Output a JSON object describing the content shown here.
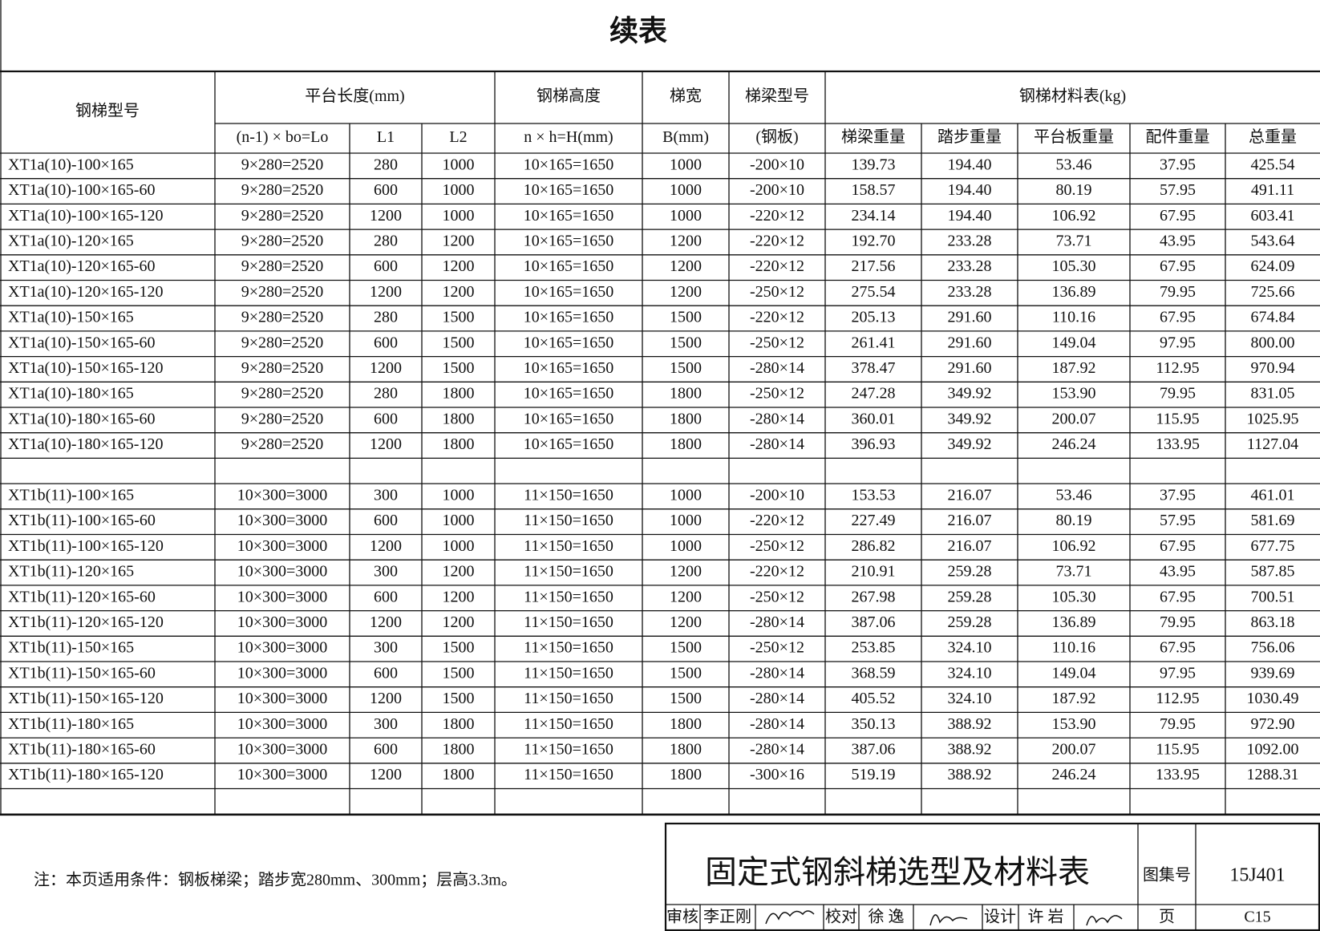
{
  "title": "续表",
  "table": {
    "header_top": {
      "model": "钢梯型号",
      "platform": "平台长度(mm)",
      "height": "钢梯高度",
      "width": "梯宽",
      "beam": "梯梁型号",
      "materials": "钢梯材料表(kg)"
    },
    "header_sub": [
      "(n-1) × bo=Lo",
      "L1",
      "L2",
      "n × h=H(mm)",
      "B(mm)",
      "(钢板)",
      "梯梁重量",
      "踏步重量",
      "平台板重量",
      "配件重量",
      "总重量"
    ],
    "groups": [
      [
        [
          "XT1a(10)-100×165",
          "9×280=2520",
          "280",
          "1000",
          "10×165=1650",
          "1000",
          "-200×10",
          "139.73",
          "194.40",
          "53.46",
          "37.95",
          "425.54"
        ],
        [
          "XT1a(10)-100×165-60",
          "9×280=2520",
          "600",
          "1000",
          "10×165=1650",
          "1000",
          "-200×10",
          "158.57",
          "194.40",
          "80.19",
          "57.95",
          "491.11"
        ],
        [
          "XT1a(10)-100×165-120",
          "9×280=2520",
          "1200",
          "1000",
          "10×165=1650",
          "1000",
          "-220×12",
          "234.14",
          "194.40",
          "106.92",
          "67.95",
          "603.41"
        ],
        [
          "XT1a(10)-120×165",
          "9×280=2520",
          "280",
          "1200",
          "10×165=1650",
          "1200",
          "-220×12",
          "192.70",
          "233.28",
          "73.71",
          "43.95",
          "543.64"
        ],
        [
          "XT1a(10)-120×165-60",
          "9×280=2520",
          "600",
          "1200",
          "10×165=1650",
          "1200",
          "-220×12",
          "217.56",
          "233.28",
          "105.30",
          "67.95",
          "624.09"
        ],
        [
          "XT1a(10)-120×165-120",
          "9×280=2520",
          "1200",
          "1200",
          "10×165=1650",
          "1200",
          "-250×12",
          "275.54",
          "233.28",
          "136.89",
          "79.95",
          "725.66"
        ],
        [
          "XT1a(10)-150×165",
          "9×280=2520",
          "280",
          "1500",
          "10×165=1650",
          "1500",
          "-220×12",
          "205.13",
          "291.60",
          "110.16",
          "67.95",
          "674.84"
        ],
        [
          "XT1a(10)-150×165-60",
          "9×280=2520",
          "600",
          "1500",
          "10×165=1650",
          "1500",
          "-250×12",
          "261.41",
          "291.60",
          "149.04",
          "97.95",
          "800.00"
        ],
        [
          "XT1a(10)-150×165-120",
          "9×280=2520",
          "1200",
          "1500",
          "10×165=1650",
          "1500",
          "-280×14",
          "378.47",
          "291.60",
          "187.92",
          "112.95",
          "970.94"
        ],
        [
          "XT1a(10)-180×165",
          "9×280=2520",
          "280",
          "1800",
          "10×165=1650",
          "1800",
          "-250×12",
          "247.28",
          "349.92",
          "153.90",
          "79.95",
          "831.05"
        ],
        [
          "XT1a(10)-180×165-60",
          "9×280=2520",
          "600",
          "1800",
          "10×165=1650",
          "1800",
          "-280×14",
          "360.01",
          "349.92",
          "200.07",
          "115.95",
          "1025.95"
        ],
        [
          "XT1a(10)-180×165-120",
          "9×280=2520",
          "1200",
          "1800",
          "10×165=1650",
          "1800",
          "-280×14",
          "396.93",
          "349.92",
          "246.24",
          "133.95",
          "1127.04"
        ]
      ],
      [
        [
          "XT1b(11)-100×165",
          "10×300=3000",
          "300",
          "1000",
          "11×150=1650",
          "1000",
          "-200×10",
          "153.53",
          "216.07",
          "53.46",
          "37.95",
          "461.01"
        ],
        [
          "XT1b(11)-100×165-60",
          "10×300=3000",
          "600",
          "1000",
          "11×150=1650",
          "1000",
          "-220×12",
          "227.49",
          "216.07",
          "80.19",
          "57.95",
          "581.69"
        ],
        [
          "XT1b(11)-100×165-120",
          "10×300=3000",
          "1200",
          "1000",
          "11×150=1650",
          "1000",
          "-250×12",
          "286.82",
          "216.07",
          "106.92",
          "67.95",
          "677.75"
        ],
        [
          "XT1b(11)-120×165",
          "10×300=3000",
          "300",
          "1200",
          "11×150=1650",
          "1200",
          "-220×12",
          "210.91",
          "259.28",
          "73.71",
          "43.95",
          "587.85"
        ],
        [
          "XT1b(11)-120×165-60",
          "10×300=3000",
          "600",
          "1200",
          "11×150=1650",
          "1200",
          "-250×12",
          "267.98",
          "259.28",
          "105.30",
          "67.95",
          "700.51"
        ],
        [
          "XT1b(11)-120×165-120",
          "10×300=3000",
          "1200",
          "1200",
          "11×150=1650",
          "1200",
          "-280×14",
          "387.06",
          "259.28",
          "136.89",
          "79.95",
          "863.18"
        ],
        [
          "XT1b(11)-150×165",
          "10×300=3000",
          "300",
          "1500",
          "11×150=1650",
          "1500",
          "-250×12",
          "253.85",
          "324.10",
          "110.16",
          "67.95",
          "756.06"
        ],
        [
          "XT1b(11)-150×165-60",
          "10×300=3000",
          "600",
          "1500",
          "11×150=1650",
          "1500",
          "-280×14",
          "368.59",
          "324.10",
          "149.04",
          "97.95",
          "939.69"
        ],
        [
          "XT1b(11)-150×165-120",
          "10×300=3000",
          "1200",
          "1500",
          "11×150=1650",
          "1500",
          "-280×14",
          "405.52",
          "324.10",
          "187.92",
          "112.95",
          "1030.49"
        ],
        [
          "XT1b(11)-180×165",
          "10×300=3000",
          "300",
          "1800",
          "11×150=1650",
          "1800",
          "-280×14",
          "350.13",
          "388.92",
          "153.90",
          "79.95",
          "972.90"
        ],
        [
          "XT1b(11)-180×165-60",
          "10×300=3000",
          "600",
          "1800",
          "11×150=1650",
          "1800",
          "-280×14",
          "387.06",
          "388.92",
          "200.07",
          "115.95",
          "1092.00"
        ],
        [
          "XT1b(11)-180×165-120",
          "10×300=3000",
          "1200",
          "1800",
          "11×150=1650",
          "1800",
          "-300×16",
          "519.19",
          "388.92",
          "246.24",
          "133.95",
          "1288.31"
        ]
      ]
    ]
  },
  "note": "注：本页适用条件：钢板梯梁；踏步宽280mm、300mm；层高3.3m。",
  "title_block": {
    "drawing_title": "固定式钢斜梯选型及材料表",
    "atlas_label": "图集号",
    "atlas_no": "15J401",
    "review_label": "审核",
    "reviewer": "李正刚",
    "check_label": "校对",
    "checker": "徐 逸",
    "design_label": "设计",
    "designer": "许 岩",
    "page_label": "页",
    "page_no": "C15"
  }
}
